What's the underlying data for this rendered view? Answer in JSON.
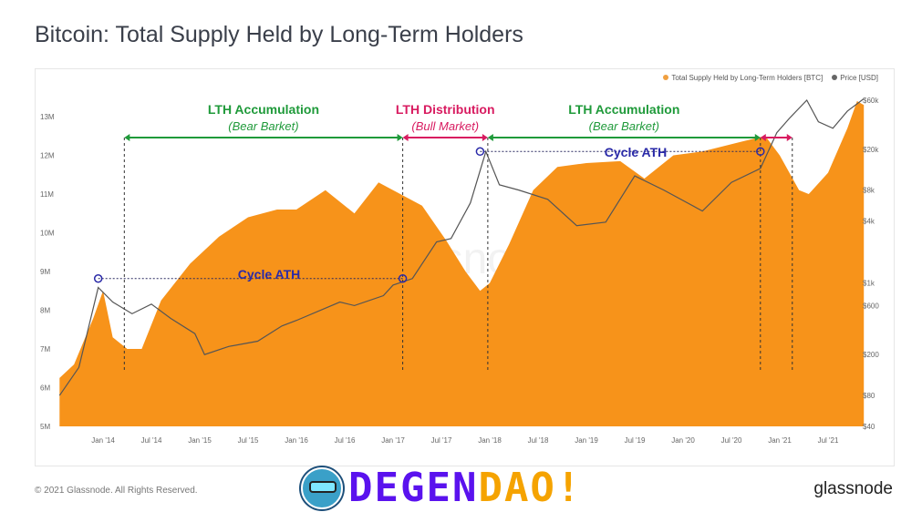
{
  "title": "Bitcoin: Total Supply Held by Long-Term Holders",
  "footer": "© 2021 Glassnode. All Rights Reserved.",
  "brand": "glassnode",
  "watermark": "glassnode",
  "overlay_logo": {
    "part1": "DEGEN",
    "part2": "DAO!",
    "color1": "#5a12ee",
    "color2": "#f5a300"
  },
  "chart_data": {
    "type": "area+line",
    "title": "Bitcoin: Total Supply Held by Long-Term Holders",
    "legend_position": "top-right",
    "grid": false,
    "series": [
      {
        "name": "Total Supply Held by Long-Term Holders [BTC]",
        "type": "area",
        "axis": "left",
        "color": "#f7931a",
        "x": [
          2013.55,
          2013.7,
          2013.9,
          2014.0,
          2014.1,
          2014.25,
          2014.4,
          2014.6,
          2014.9,
          2015.2,
          2015.5,
          2015.8,
          2016.0,
          2016.3,
          2016.6,
          2016.85,
          2017.0,
          2017.3,
          2017.55,
          2017.75,
          2017.9,
          2018.0,
          2018.2,
          2018.45,
          2018.7,
          2019.0,
          2019.35,
          2019.6,
          2019.9,
          2020.2,
          2020.6,
          2020.85,
          2021.0,
          2021.2,
          2021.3,
          2021.5,
          2021.7,
          2021.8,
          2021.87
        ],
        "y": [
          6.25,
          6.6,
          7.8,
          8.5,
          7.3,
          7.0,
          7.0,
          8.25,
          9.2,
          9.9,
          10.4,
          10.6,
          10.6,
          11.1,
          10.5,
          11.3,
          11.1,
          10.7,
          9.8,
          9.0,
          8.5,
          8.7,
          9.7,
          11.1,
          11.7,
          11.8,
          11.85,
          11.4,
          12.0,
          12.1,
          12.35,
          12.5,
          12.0,
          11.1,
          11.0,
          11.55,
          12.7,
          13.4,
          13.3
        ]
      },
      {
        "name": "Price [USD]",
        "type": "line",
        "axis": "right",
        "color": "#555555",
        "x": [
          2013.55,
          2013.75,
          2013.95,
          2014.1,
          2014.3,
          2014.5,
          2014.7,
          2014.95,
          2015.05,
          2015.3,
          2015.6,
          2015.85,
          2016.0,
          2016.45,
          2016.6,
          2016.9,
          2017.0,
          2017.2,
          2017.45,
          2017.6,
          2017.8,
          2017.96,
          2018.1,
          2018.3,
          2018.6,
          2018.9,
          2019.2,
          2019.5,
          2019.8,
          2020.2,
          2020.5,
          2020.8,
          2020.97,
          2021.1,
          2021.28,
          2021.4,
          2021.55,
          2021.7,
          2021.87
        ],
        "y": [
          80,
          150,
          900,
          650,
          500,
          620,
          450,
          320,
          200,
          240,
          270,
          380,
          430,
          650,
          600,
          750,
          950,
          1100,
          2500,
          2700,
          6000,
          19000,
          9000,
          8000,
          6500,
          3600,
          3900,
          11000,
          8000,
          5000,
          9500,
          13000,
          29000,
          40000,
          60000,
          37000,
          32000,
          47000,
          62000
        ]
      }
    ],
    "x_ticks": [
      "Jan '14",
      "Jul '14",
      "Jan '15",
      "Jul '15",
      "Jan '16",
      "Jul '16",
      "Jan '17",
      "Jul '17",
      "Jan '18",
      "Jul '18",
      "Jan '19",
      "Jul '19",
      "Jan '20",
      "Jul '20",
      "Jan '21",
      "Jul '21"
    ],
    "x_tick_values": [
      2014,
      2014.5,
      2015,
      2015.5,
      2016,
      2016.5,
      2017,
      2017.5,
      2018,
      2018.5,
      2019,
      2019.5,
      2020,
      2020.5,
      2021,
      2021.5
    ],
    "y_left_ticks": [
      "5M",
      "6M",
      "7M",
      "8M",
      "9M",
      "10M",
      "11M",
      "12M",
      "13M"
    ],
    "y_left_values": [
      5,
      6,
      7,
      8,
      9,
      10,
      11,
      12,
      13
    ],
    "y_left_range": [
      5,
      13.6
    ],
    "y_right_scale": "log",
    "y_right_ticks": [
      "$40",
      "$80",
      "$200",
      "$600",
      "$1k",
      "$4k",
      "$8k",
      "$20k",
      "$60k"
    ],
    "y_right_values": [
      40,
      80,
      200,
      600,
      1000,
      4000,
      8000,
      20000,
      60000
    ],
    "annotations": {
      "phases": [
        {
          "label": "LTH Accumulation",
          "sub": "(Bear Barket)",
          "color": "#1f9a3a",
          "from": 2014.22,
          "to": 2017.1
        },
        {
          "label": "LTH Distribution",
          "sub": "(Bull Market)",
          "color": "#d81b60",
          "from": 2017.1,
          "to": 2017.98
        },
        {
          "label": "LTH Accumulation",
          "sub": "(Bear Barket)",
          "color": "#1f9a3a",
          "from": 2017.98,
          "to": 2020.8
        },
        {
          "label": "",
          "sub": "",
          "color": "#d81b60",
          "from": 2020.8,
          "to": 2021.13
        }
      ],
      "cycle_ath": [
        {
          "label": "Cycle ATH",
          "from": 2013.95,
          "to": 2017.1,
          "price": 1100
        },
        {
          "label": "Cycle ATH",
          "from": 2017.9,
          "to": 2020.8,
          "price": 19000
        }
      ],
      "ath_color": "#2a2aa8"
    }
  }
}
